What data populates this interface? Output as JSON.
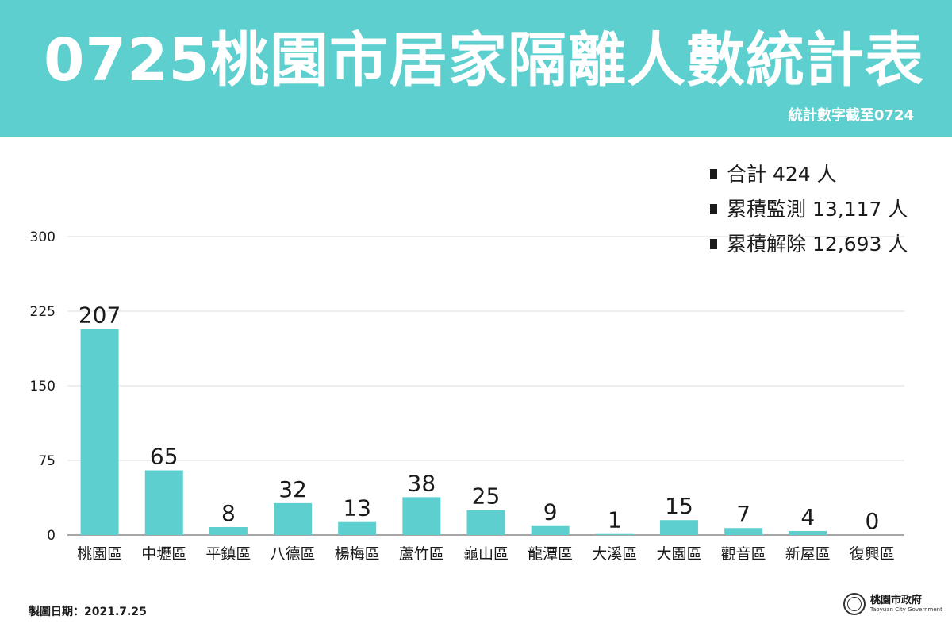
{
  "header": {
    "title": "0725桃園市居家隔離人數統計表",
    "subtitle": "統計數字截至0724",
    "background": "#5ecfcf"
  },
  "stats": [
    {
      "label": "合計 424 人"
    },
    {
      "label": "累積監測 13,117 人"
    },
    {
      "label": "累積解除 12,693 人"
    }
  ],
  "chart_data": {
    "type": "bar",
    "categories": [
      "桃園區",
      "中壢區",
      "平鎮區",
      "八德區",
      "楊梅區",
      "蘆竹區",
      "龜山區",
      "龍潭區",
      "大溪區",
      "大園區",
      "觀音區",
      "新屋區",
      "復興區"
    ],
    "values": [
      207,
      65,
      8,
      32,
      13,
      38,
      25,
      9,
      1,
      15,
      7,
      4,
      0
    ],
    "yticks": [
      0,
      75,
      150,
      225,
      300
    ],
    "ylim": [
      0,
      300
    ],
    "grid": true,
    "bar_color": "#5ecfcf"
  },
  "footer": {
    "date_label": "製圖日期：2021.7.25",
    "org_name": "桃園市政府",
    "org_name_en": "Taoyuan City Government",
    "seal_text": "桃園"
  }
}
